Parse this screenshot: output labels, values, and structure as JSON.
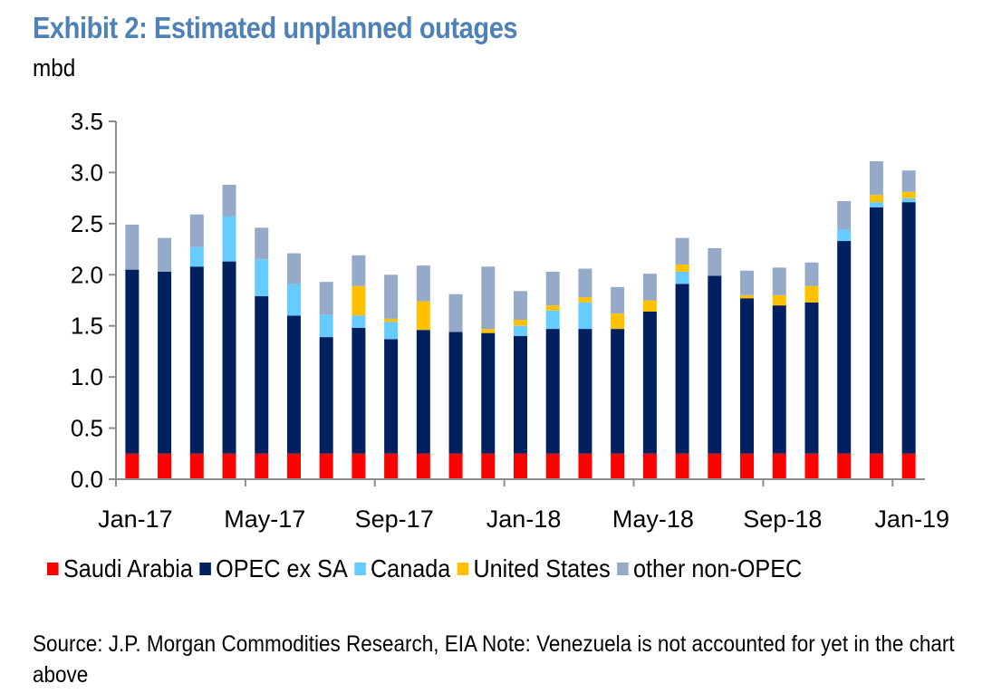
{
  "title": "Exhibit 2: Estimated unplanned outages",
  "unit": "mbd",
  "source": "Source: J.P. Morgan Commodities Research, EIA Note: Venezuela is not accounted for yet in the chart above",
  "chart_data": {
    "type": "bar",
    "stacked": true,
    "title": "Exhibit 2: Estimated unplanned outages",
    "xlabel": "",
    "ylabel": "mbd",
    "ylim": [
      0,
      3.5
    ],
    "yticks": [
      "0.0",
      "0.5",
      "1.0",
      "1.5",
      "2.0",
      "2.5",
      "3.0",
      "3.5"
    ],
    "xtick_labels": [
      "Jan-17",
      "May-17",
      "Sep-17",
      "Jan-18",
      "May-18",
      "Sep-18",
      "Jan-19"
    ],
    "legend_position": "bottom",
    "grid": false,
    "categories": [
      "Jan-17",
      "Feb-17",
      "Mar-17",
      "Apr-17",
      "May-17",
      "Jun-17",
      "Jul-17",
      "Aug-17",
      "Sep-17",
      "Oct-17",
      "Nov-17",
      "Dec-17",
      "Jan-18",
      "Feb-18",
      "Mar-18",
      "Apr-18",
      "May-18",
      "Jun-18",
      "Jul-18",
      "Aug-18",
      "Sep-18",
      "Oct-18",
      "Nov-18",
      "Dec-18",
      "Jan-19"
    ],
    "series": [
      {
        "name": "Saudi Arabia",
        "color": "#ff0000",
        "values": [
          0.25,
          0.25,
          0.25,
          0.25,
          0.25,
          0.25,
          0.25,
          0.25,
          0.25,
          0.25,
          0.25,
          0.25,
          0.25,
          0.25,
          0.25,
          0.25,
          0.25,
          0.25,
          0.25,
          0.25,
          0.25,
          0.25,
          0.25,
          0.25,
          0.25
        ]
      },
      {
        "name": "OPEC ex SA",
        "color": "#002060",
        "values": [
          1.8,
          1.78,
          1.83,
          1.88,
          1.54,
          1.35,
          1.14,
          1.23,
          1.12,
          1.21,
          1.19,
          1.18,
          1.15,
          1.22,
          1.22,
          1.22,
          1.39,
          1.66,
          1.74,
          1.52,
          1.45,
          1.48,
          2.08,
          2.41,
          2.46
        ]
      },
      {
        "name": "Canada",
        "color": "#66ccff",
        "values": [
          0,
          0,
          0.19,
          0.44,
          0.36,
          0.31,
          0.22,
          0.12,
          0.17,
          0,
          0,
          0,
          0.1,
          0.18,
          0.26,
          0,
          0,
          0.12,
          0,
          0,
          0,
          0,
          0.11,
          0.05,
          0.04
        ]
      },
      {
        "name": "United States",
        "color": "#ffc000",
        "values": [
          0,
          0,
          0,
          0,
          0,
          0,
          0,
          0.29,
          0.03,
          0.28,
          0,
          0.04,
          0.06,
          0.05,
          0.05,
          0.15,
          0.11,
          0.07,
          0,
          0.03,
          0.1,
          0.16,
          0,
          0.07,
          0.06
        ]
      },
      {
        "name": "other non-OPEC",
        "color": "#95aac9",
        "values": [
          0.44,
          0.33,
          0.32,
          0.31,
          0.31,
          0.3,
          0.32,
          0.3,
          0.43,
          0.35,
          0.37,
          0.61,
          0.28,
          0.33,
          0.28,
          0.26,
          0.26,
          0.26,
          0.27,
          0.24,
          0.27,
          0.23,
          0.28,
          0.33,
          0.21
        ]
      }
    ]
  }
}
